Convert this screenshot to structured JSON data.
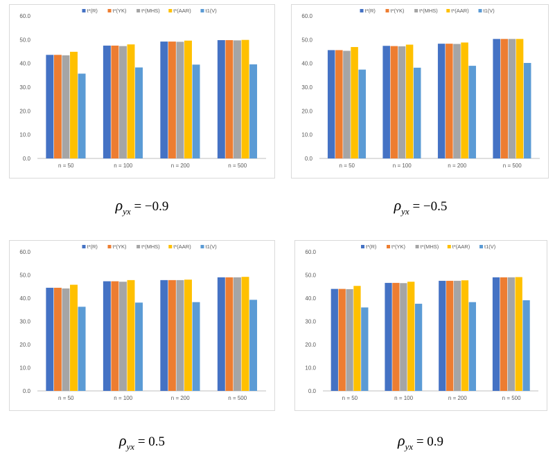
{
  "colors": [
    "#4472C4",
    "#ED7D31",
    "#A5A5A5",
    "#FFC000",
    "#5B9BD5"
  ],
  "axis": {
    "ylim": [
      0,
      60
    ],
    "ticks": [
      "0.0",
      "10.0",
      "20.0",
      "30.0",
      "40.0",
      "50.0",
      "60.0"
    ]
  },
  "chart_data": [
    {
      "type": "bar",
      "categories": [
        "n = 50",
        "n = 100",
        "n = 200",
        "n = 500"
      ],
      "series": [
        {
          "name": "t*(R)",
          "values": [
            43.6,
            47.5,
            49.2,
            49.8
          ]
        },
        {
          "name": "t*(YK)",
          "values": [
            43.6,
            47.5,
            49.2,
            49.8
          ]
        },
        {
          "name": "t*(MHS)",
          "values": [
            43.4,
            47.3,
            49.1,
            49.7
          ]
        },
        {
          "name": "t*(AAR)",
          "values": [
            44.9,
            48.0,
            49.6,
            49.9
          ]
        },
        {
          "name": "t1(V)",
          "values": [
            35.7,
            38.3,
            39.5,
            39.6
          ]
        }
      ],
      "ylim": [
        0,
        60
      ],
      "caption": {
        "rho": "ρ",
        "sub": "yx",
        "value": "= −0.9"
      }
    },
    {
      "type": "bar",
      "categories": [
        "n = 50",
        "n = 100",
        "n = 200",
        "n = 500"
      ],
      "series": [
        {
          "name": "t*(R)",
          "values": [
            45.6,
            47.4,
            48.3,
            50.3
          ]
        },
        {
          "name": "t*(YK)",
          "values": [
            45.6,
            47.3,
            48.3,
            50.3
          ]
        },
        {
          "name": "t*(MHS)",
          "values": [
            45.3,
            47.2,
            48.2,
            50.3
          ]
        },
        {
          "name": "t*(AAR)",
          "values": [
            46.9,
            47.9,
            48.8,
            50.3
          ]
        },
        {
          "name": "t1(V)",
          "values": [
            37.4,
            38.2,
            39.0,
            40.2
          ]
        }
      ],
      "ylim": [
        0,
        60
      ],
      "caption": {
        "rho": "ρ",
        "sub": "yx",
        "value": "= −0.5"
      }
    },
    {
      "type": "bar",
      "categories": [
        "n = 50",
        "n = 100",
        "n = 200",
        "n = 500"
      ],
      "series": [
        {
          "name": "t*(R)",
          "values": [
            44.5,
            47.3,
            47.8,
            49.0
          ]
        },
        {
          "name": "t*(YK)",
          "values": [
            44.5,
            47.3,
            47.8,
            49.0
          ]
        },
        {
          "name": "t*(MHS)",
          "values": [
            44.2,
            47.1,
            47.8,
            49.0
          ]
        },
        {
          "name": "t*(AAR)",
          "values": [
            45.8,
            47.8,
            48.0,
            49.2
          ]
        },
        {
          "name": "t1(V)",
          "values": [
            36.3,
            38.1,
            38.3,
            39.3
          ]
        }
      ],
      "ylim": [
        0,
        60
      ],
      "caption": {
        "rho": "ρ",
        "sub": "yx",
        "value": "= 0.5"
      }
    },
    {
      "type": "bar",
      "categories": [
        "n = 50",
        "n = 100",
        "n = 200",
        "n = 500"
      ],
      "series": [
        {
          "name": "t*(R)",
          "values": [
            44.0,
            46.6,
            47.5,
            49.0
          ]
        },
        {
          "name": "t*(YK)",
          "values": [
            44.0,
            46.6,
            47.5,
            49.0
          ]
        },
        {
          "name": "t*(MHS)",
          "values": [
            43.9,
            46.5,
            47.5,
            49.0
          ]
        },
        {
          "name": "t*(AAR)",
          "values": [
            45.3,
            47.1,
            47.7,
            49.1
          ]
        },
        {
          "name": "t1(V)",
          "values": [
            36.0,
            37.6,
            38.3,
            39.1
          ]
        }
      ],
      "ylim": [
        0,
        60
      ],
      "caption": {
        "rho": "ρ",
        "sub": "yx",
        "value": "= 0.9"
      }
    }
  ]
}
